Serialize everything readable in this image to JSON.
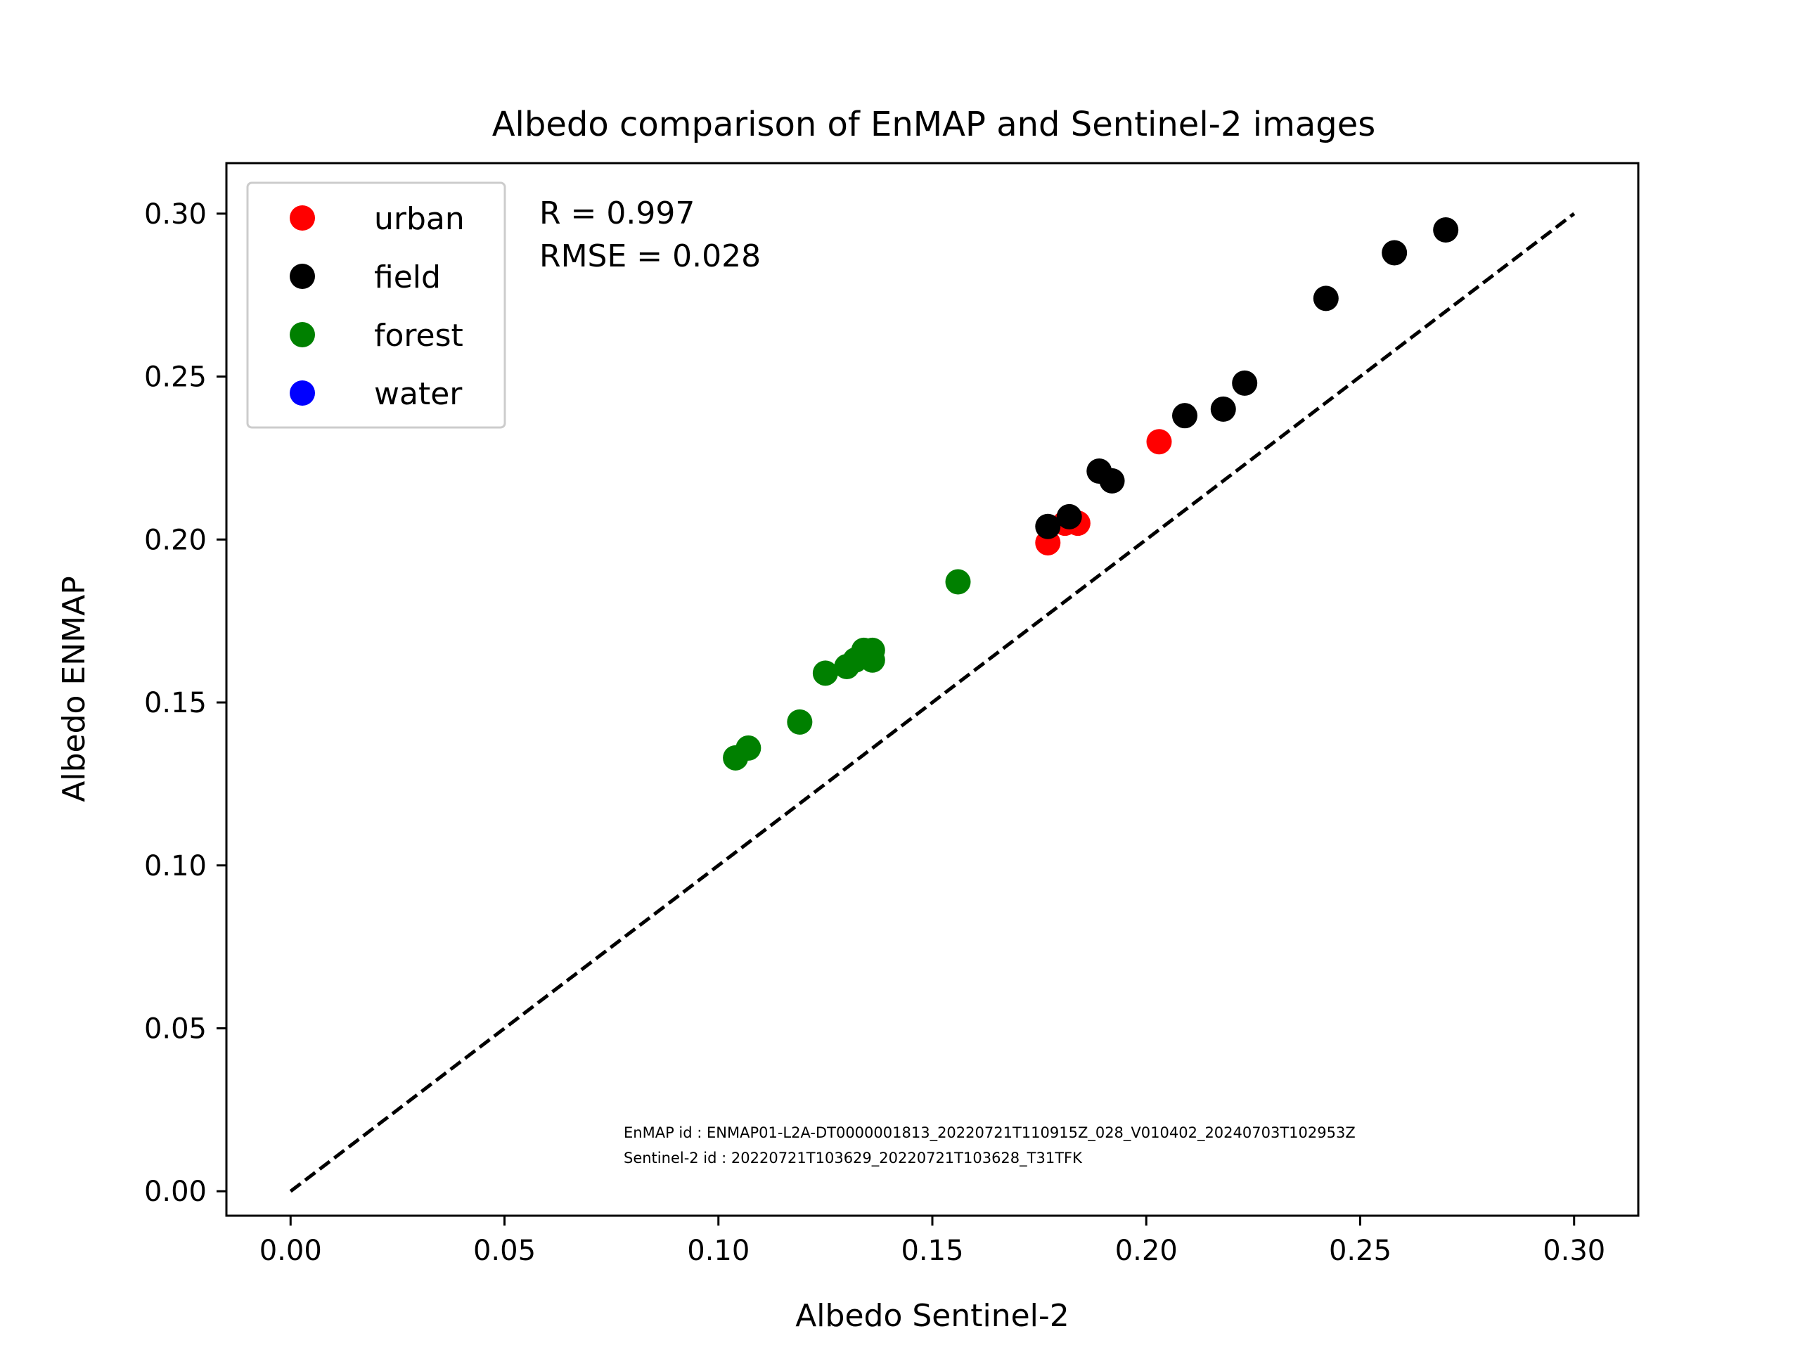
{
  "chart_data": {
    "type": "scatter",
    "title": "Albedo comparison of EnMAP and Sentinel-2 images",
    "xlabel": "Albedo Sentinel-2",
    "ylabel": "Albedo ENMAP",
    "xlim": [
      -0.015,
      0.315
    ],
    "ylim": [
      -0.0075,
      0.3155
    ],
    "xticks": [
      0.0,
      0.05,
      0.1,
      0.15,
      0.2,
      0.25,
      0.3
    ],
    "xtick_labels": [
      "0.00",
      "0.05",
      "0.10",
      "0.15",
      "0.20",
      "0.25",
      "0.30"
    ],
    "yticks": [
      0.0,
      0.05,
      0.1,
      0.15,
      0.2,
      0.25,
      0.3
    ],
    "ytick_labels": [
      "0.00",
      "0.05",
      "0.10",
      "0.15",
      "0.20",
      "0.25",
      "0.30"
    ],
    "grid": false,
    "legend_position": "top-left",
    "reference_line": {
      "style": "dashed",
      "color": "#000000",
      "x": [
        0.0,
        0.3
      ],
      "y": [
        0.0,
        0.3
      ]
    },
    "series": [
      {
        "name": "urban",
        "color": "#ff0000",
        "points": [
          [
            0.177,
            0.199
          ],
          [
            0.181,
            0.205
          ],
          [
            0.184,
            0.205
          ],
          [
            0.203,
            0.23
          ]
        ]
      },
      {
        "name": "field",
        "color": "#000000",
        "points": [
          [
            0.177,
            0.204
          ],
          [
            0.182,
            0.207
          ],
          [
            0.189,
            0.221
          ],
          [
            0.192,
            0.218
          ],
          [
            0.209,
            0.238
          ],
          [
            0.218,
            0.24
          ],
          [
            0.223,
            0.248
          ],
          [
            0.242,
            0.274
          ],
          [
            0.258,
            0.288
          ],
          [
            0.27,
            0.295
          ]
        ]
      },
      {
        "name": "forest",
        "color": "#008000",
        "points": [
          [
            0.104,
            0.133
          ],
          [
            0.107,
            0.136
          ],
          [
            0.119,
            0.144
          ],
          [
            0.125,
            0.159
          ],
          [
            0.13,
            0.161
          ],
          [
            0.132,
            0.163
          ],
          [
            0.134,
            0.166
          ],
          [
            0.136,
            0.166
          ],
          [
            0.136,
            0.163
          ],
          [
            0.156,
            0.187
          ]
        ]
      },
      {
        "name": "water",
        "color": "#0000ff",
        "points": []
      }
    ],
    "annotations": {
      "r_text": "R = 0.997",
      "rmse_text": "RMSE = 0.028",
      "enmap_id": "EnMAP id : ENMAP01-L2A-DT0000001813_20220721T110915Z_028_V010402_20240703T102953Z",
      "sentinel_id": "Sentinel-2 id : 20220721T103629_20220721T103628_T31TFK"
    }
  }
}
